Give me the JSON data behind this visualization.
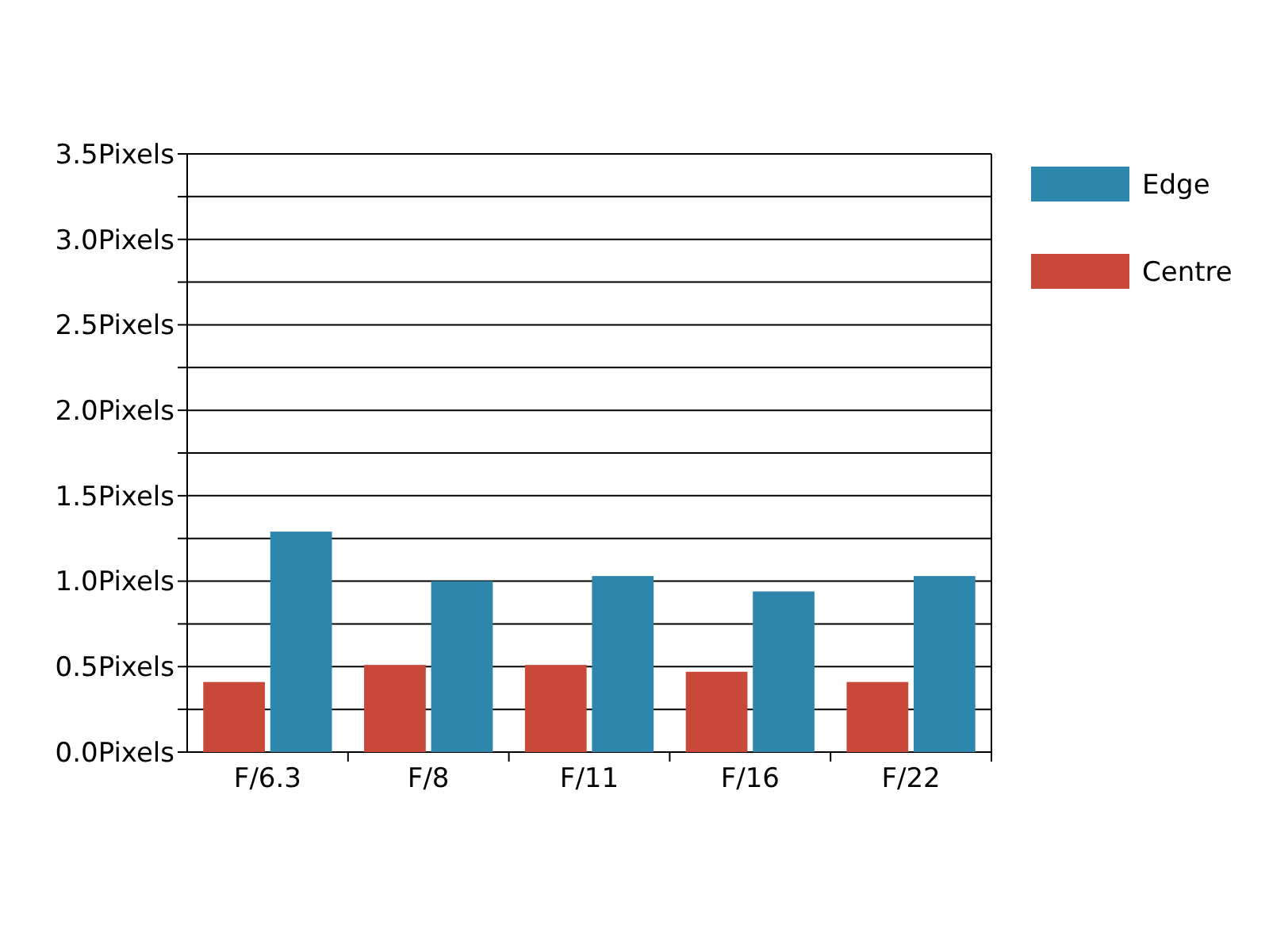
{
  "chart_data": {
    "type": "bar",
    "categories": [
      "F/6.3",
      "F/8",
      "F/11",
      "F/16",
      "F/22"
    ],
    "series": [
      {
        "name": "Centre",
        "color": "#c8483a",
        "values": [
          0.41,
          0.51,
          0.51,
          0.47,
          0.41
        ]
      },
      {
        "name": "Edge",
        "color": "#2e86ad",
        "values": [
          1.29,
          1.0,
          1.03,
          0.94,
          1.03
        ]
      }
    ],
    "ylim": [
      0,
      3.5
    ],
    "yticks": [
      {
        "value": 0,
        "label": "0.0Pixels"
      },
      {
        "value": 0.25,
        "label": null
      },
      {
        "value": 0.5,
        "label": "0.5Pixels"
      },
      {
        "value": 0.75,
        "label": null
      },
      {
        "value": 1,
        "label": "1.0Pixels"
      },
      {
        "value": 1.25,
        "label": null
      },
      {
        "value": 1.5,
        "label": "1.5Pixels"
      },
      {
        "value": 1.75,
        "label": null
      },
      {
        "value": 2,
        "label": "2.0Pixels"
      },
      {
        "value": 2.25,
        "label": null
      },
      {
        "value": 2.5,
        "label": "2.5Pixels"
      },
      {
        "value": 2.75,
        "label": null
      },
      {
        "value": 3,
        "label": "3.0Pixels"
      },
      {
        "value": 3.25,
        "label": null
      },
      {
        "value": 3.5,
        "label": "3.5Pixels"
      }
    ],
    "grid": "y",
    "legend": "top right"
  }
}
